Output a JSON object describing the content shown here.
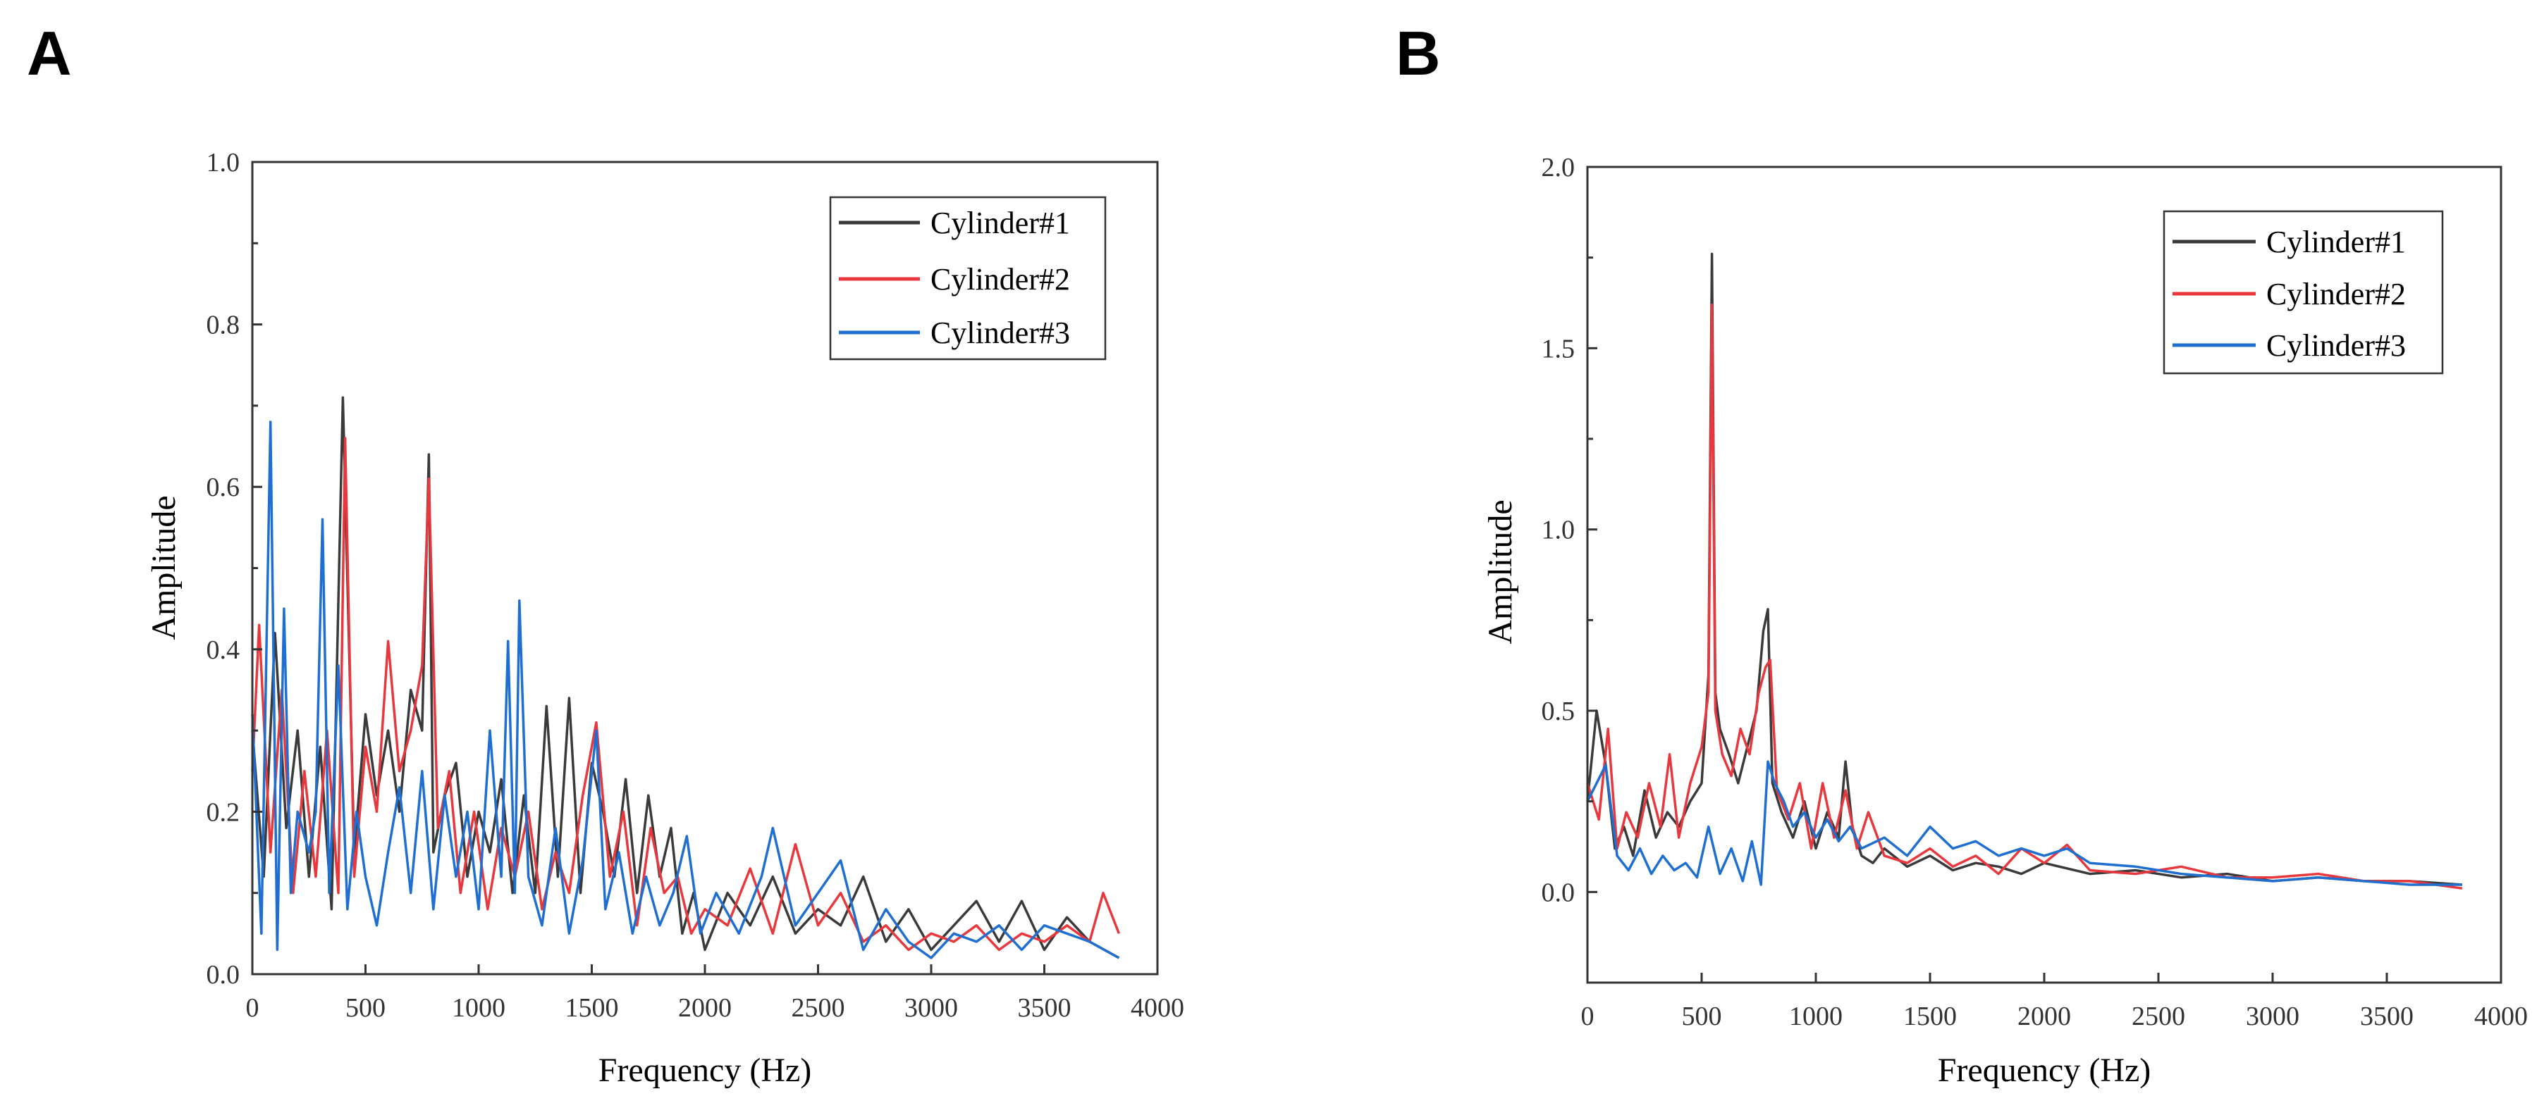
{
  "chart_data": [
    {
      "panel": "A",
      "type": "line",
      "xlabel": "Frequency (Hz)",
      "ylabel": "Amplitude",
      "xlim": [
        0,
        4000
      ],
      "ylim": [
        0,
        1.0
      ],
      "xticks": [
        0,
        500,
        1000,
        1500,
        2000,
        2500,
        3000,
        3500,
        4000
      ],
      "yticks": [
        0.0,
        0.2,
        0.4,
        0.6,
        0.8,
        1.0
      ],
      "ytick_labels": [
        "0.0",
        "0.2",
        "0.4",
        "0.6",
        "0.8",
        "1.0"
      ],
      "grid": false,
      "legend_position": "top-right",
      "series": [
        {
          "name": "Cylinder#1",
          "color": "#3a3a3a",
          "x": [
            0,
            50,
            100,
            150,
            200,
            250,
            300,
            350,
            400,
            450,
            500,
            550,
            600,
            650,
            700,
            750,
            780,
            800,
            850,
            900,
            950,
            1000,
            1050,
            1100,
            1150,
            1200,
            1250,
            1300,
            1350,
            1400,
            1450,
            1500,
            1550,
            1600,
            1650,
            1700,
            1750,
            1800,
            1850,
            1900,
            1950,
            2000,
            2100,
            2200,
            2300,
            2400,
            2500,
            2600,
            2700,
            2800,
            2900,
            3000,
            3100,
            3200,
            3300,
            3400,
            3500,
            3600,
            3700,
            3830
          ],
          "values": [
            0.3,
            0.12,
            0.42,
            0.18,
            0.3,
            0.12,
            0.28,
            0.08,
            0.71,
            0.15,
            0.32,
            0.22,
            0.3,
            0.2,
            0.35,
            0.3,
            0.64,
            0.15,
            0.22,
            0.26,
            0.12,
            0.2,
            0.15,
            0.24,
            0.1,
            0.22,
            0.1,
            0.33,
            0.12,
            0.34,
            0.1,
            0.26,
            0.2,
            0.12,
            0.24,
            0.1,
            0.22,
            0.12,
            0.18,
            0.05,
            0.1,
            0.03,
            0.1,
            0.06,
            0.12,
            0.05,
            0.08,
            0.06,
            0.12,
            0.04,
            0.08,
            0.03,
            0.06,
            0.09,
            0.04,
            0.09,
            0.03,
            0.07,
            0.04,
            0.02
          ]
        },
        {
          "name": "Cylinder#2",
          "color": "#e8383d",
          "x": [
            0,
            30,
            80,
            130,
            180,
            230,
            280,
            330,
            380,
            410,
            450,
            500,
            550,
            600,
            650,
            700,
            750,
            780,
            820,
            870,
            920,
            980,
            1040,
            1100,
            1160,
            1220,
            1280,
            1340,
            1400,
            1460,
            1520,
            1580,
            1640,
            1700,
            1760,
            1820,
            1880,
            1940,
            2000,
            2100,
            2200,
            2300,
            2400,
            2500,
            2600,
            2700,
            2800,
            2900,
            3000,
            3100,
            3200,
            3300,
            3400,
            3500,
            3600,
            3700,
            3760,
            3830
          ],
          "values": [
            0.25,
            0.43,
            0.15,
            0.35,
            0.1,
            0.25,
            0.12,
            0.3,
            0.1,
            0.66,
            0.12,
            0.28,
            0.2,
            0.41,
            0.25,
            0.3,
            0.38,
            0.61,
            0.18,
            0.25,
            0.1,
            0.2,
            0.08,
            0.18,
            0.12,
            0.2,
            0.08,
            0.15,
            0.1,
            0.22,
            0.31,
            0.12,
            0.2,
            0.06,
            0.18,
            0.1,
            0.12,
            0.05,
            0.08,
            0.06,
            0.13,
            0.05,
            0.16,
            0.06,
            0.1,
            0.04,
            0.06,
            0.03,
            0.05,
            0.04,
            0.06,
            0.03,
            0.05,
            0.04,
            0.06,
            0.04,
            0.1,
            0.05
          ]
        },
        {
          "name": "Cylinder#3",
          "color": "#1f6fd1",
          "x": [
            0,
            40,
            80,
            110,
            140,
            170,
            200,
            250,
            280,
            310,
            340,
            380,
            420,
            460,
            500,
            550,
            600,
            650,
            700,
            750,
            800,
            850,
            900,
            950,
            1000,
            1050,
            1100,
            1130,
            1160,
            1180,
            1220,
            1280,
            1340,
            1400,
            1460,
            1520,
            1560,
            1620,
            1680,
            1740,
            1800,
            1860,
            1920,
            1980,
            2050,
            2150,
            2250,
            2300,
            2400,
            2500,
            2600,
            2700,
            2800,
            2900,
            3000,
            3100,
            3200,
            3300,
            3400,
            3500,
            3600,
            3700,
            3830
          ],
          "values": [
            0.32,
            0.05,
            0.68,
            0.03,
            0.45,
            0.1,
            0.2,
            0.15,
            0.2,
            0.56,
            0.1,
            0.38,
            0.08,
            0.2,
            0.12,
            0.06,
            0.15,
            0.23,
            0.1,
            0.25,
            0.08,
            0.22,
            0.12,
            0.2,
            0.08,
            0.3,
            0.12,
            0.41,
            0.1,
            0.46,
            0.12,
            0.06,
            0.18,
            0.05,
            0.14,
            0.3,
            0.08,
            0.15,
            0.05,
            0.12,
            0.06,
            0.1,
            0.17,
            0.05,
            0.1,
            0.05,
            0.12,
            0.18,
            0.06,
            0.1,
            0.14,
            0.03,
            0.08,
            0.04,
            0.02,
            0.05,
            0.04,
            0.06,
            0.03,
            0.06,
            0.05,
            0.04,
            0.02
          ]
        }
      ]
    },
    {
      "panel": "B",
      "type": "line",
      "xlabel": "Frequency (Hz)",
      "ylabel": "Amplitude",
      "xlim": [
        0,
        4000
      ],
      "ylim": [
        -0.25,
        2.0
      ],
      "xticks": [
        0,
        500,
        1000,
        1500,
        2000,
        2500,
        3000,
        3500,
        4000
      ],
      "yticks": [
        0.0,
        0.5,
        1.0,
        1.5,
        2.0
      ],
      "ytick_labels": [
        "0.0",
        "0.5",
        "1.0",
        "1.5",
        "2.0"
      ],
      "grid": false,
      "legend_position": "top-right",
      "series": [
        {
          "name": "Cylinder#1",
          "color": "#3a3a3a",
          "x": [
            0,
            40,
            80,
            120,
            160,
            200,
            250,
            300,
            350,
            400,
            450,
            500,
            530,
            545,
            560,
            580,
            620,
            660,
            700,
            740,
            770,
            790,
            810,
            850,
            900,
            950,
            1000,
            1050,
            1100,
            1130,
            1160,
            1200,
            1250,
            1300,
            1400,
            1500,
            1600,
            1700,
            1800,
            1900,
            2000,
            2200,
            2400,
            2600,
            2800,
            3000,
            3200,
            3400,
            3600,
            3830
          ],
          "values": [
            0.25,
            0.5,
            0.35,
            0.12,
            0.18,
            0.1,
            0.28,
            0.15,
            0.22,
            0.18,
            0.25,
            0.3,
            0.6,
            1.76,
            0.55,
            0.45,
            0.38,
            0.3,
            0.4,
            0.5,
            0.72,
            0.78,
            0.3,
            0.22,
            0.15,
            0.25,
            0.12,
            0.22,
            0.15,
            0.36,
            0.18,
            0.1,
            0.08,
            0.12,
            0.07,
            0.1,
            0.06,
            0.08,
            0.07,
            0.05,
            0.08,
            0.05,
            0.06,
            0.04,
            0.05,
            0.03,
            0.04,
            0.03,
            0.03,
            0.02
          ]
        },
        {
          "name": "Cylinder#2",
          "color": "#e8383d",
          "x": [
            0,
            50,
            90,
            130,
            170,
            220,
            270,
            320,
            360,
            400,
            450,
            500,
            530,
            545,
            560,
            590,
            630,
            670,
            710,
            750,
            780,
            800,
            830,
            880,
            930,
            980,
            1030,
            1080,
            1130,
            1180,
            1230,
            1300,
            1400,
            1500,
            1600,
            1700,
            1800,
            1900,
            2000,
            2100,
            2200,
            2400,
            2600,
            2800,
            3000,
            3200,
            3400,
            3600,
            3830
          ],
          "values": [
            0.3,
            0.2,
            0.45,
            0.12,
            0.22,
            0.15,
            0.3,
            0.18,
            0.38,
            0.15,
            0.3,
            0.4,
            0.55,
            1.62,
            0.5,
            0.38,
            0.32,
            0.45,
            0.38,
            0.55,
            0.62,
            0.64,
            0.28,
            0.2,
            0.3,
            0.12,
            0.3,
            0.15,
            0.28,
            0.12,
            0.22,
            0.1,
            0.08,
            0.12,
            0.07,
            0.1,
            0.05,
            0.12,
            0.08,
            0.13,
            0.06,
            0.05,
            0.07,
            0.04,
            0.04,
            0.05,
            0.03,
            0.03,
            0.01
          ]
        },
        {
          "name": "Cylinder#3",
          "color": "#1f6fd1",
          "x": [
            0,
            40,
            80,
            130,
            180,
            230,
            280,
            330,
            380,
            430,
            480,
            530,
            580,
            630,
            680,
            720,
            760,
            790,
            820,
            860,
            900,
            950,
            1000,
            1050,
            1100,
            1150,
            1200,
            1300,
            1400,
            1500,
            1600,
            1700,
            1800,
            1900,
            2000,
            2100,
            2200,
            2400,
            2600,
            2800,
            3000,
            3200,
            3400,
            3600,
            3830
          ],
          "values": [
            0.25,
            0.3,
            0.35,
            0.1,
            0.06,
            0.12,
            0.05,
            0.1,
            0.06,
            0.08,
            0.04,
            0.18,
            0.05,
            0.12,
            0.03,
            0.14,
            0.02,
            0.36,
            0.3,
            0.25,
            0.18,
            0.22,
            0.15,
            0.2,
            0.14,
            0.18,
            0.12,
            0.15,
            0.1,
            0.18,
            0.12,
            0.14,
            0.1,
            0.12,
            0.1,
            0.12,
            0.08,
            0.07,
            0.05,
            0.04,
            0.03,
            0.04,
            0.03,
            0.02,
            0.02
          ]
        }
      ]
    }
  ]
}
